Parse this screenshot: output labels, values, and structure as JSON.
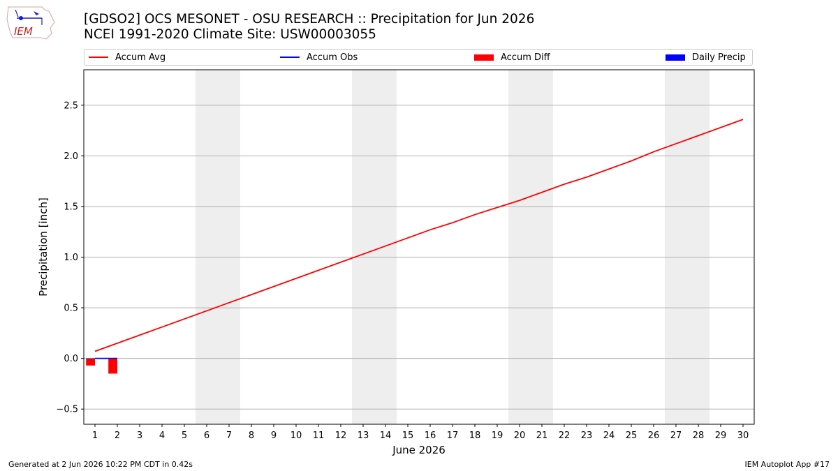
{
  "header": {
    "logo_text": "IEM",
    "title_line1": "[GDSO2] OCS MESONET - OSU RESEARCH :: Precipitation for Jun 2026",
    "title_line2": "NCEI 1991-2020 Climate Site: USW00003055"
  },
  "legend": [
    {
      "label": "Accum Avg",
      "kind": "line",
      "color": "#ff0000"
    },
    {
      "label": "Accum Obs",
      "kind": "line",
      "color": "#0000ff"
    },
    {
      "label": "Accum Diff",
      "kind": "bar",
      "color": "#ff0000"
    },
    {
      "label": "Daily Precip",
      "kind": "bar",
      "color": "#0000ff"
    }
  ],
  "chart_data": {
    "type": "line",
    "xlabel": "June 2026",
    "ylabel": "Precipitation [inch]",
    "x": [
      1,
      2,
      3,
      4,
      5,
      6,
      7,
      8,
      9,
      10,
      11,
      12,
      13,
      14,
      15,
      16,
      17,
      18,
      19,
      20,
      21,
      22,
      23,
      24,
      25,
      26,
      27,
      28,
      29,
      30
    ],
    "xlim": [
      0.5,
      30.5
    ],
    "ylim": [
      -0.65,
      2.85
    ],
    "yticks": [
      -0.5,
      0.0,
      0.5,
      1.0,
      1.5,
      2.0,
      2.5
    ],
    "ytick_labels": [
      "−0.5",
      "0.0",
      "0.5",
      "1.0",
      "1.5",
      "2.0",
      "2.5"
    ],
    "grid": "horizontal",
    "weekend_shading": [
      [
        5.5,
        7.5
      ],
      [
        12.5,
        14.5
      ],
      [
        19.5,
        21.5
      ],
      [
        26.5,
        28.5
      ]
    ],
    "series": [
      {
        "name": "Accum Avg",
        "type": "line",
        "color": "#ff0000",
        "x": [
          1,
          2,
          3,
          4,
          5,
          6,
          7,
          8,
          9,
          10,
          11,
          12,
          13,
          14,
          15,
          16,
          17,
          18,
          19,
          20,
          21,
          22,
          23,
          24,
          25,
          26,
          27,
          28,
          29,
          30
        ],
        "values": [
          0.07,
          0.15,
          0.23,
          0.31,
          0.39,
          0.47,
          0.55,
          0.63,
          0.71,
          0.79,
          0.87,
          0.95,
          1.03,
          1.11,
          1.19,
          1.27,
          1.34,
          1.42,
          1.49,
          1.56,
          1.64,
          1.72,
          1.79,
          1.87,
          1.95,
          2.04,
          2.12,
          2.2,
          2.28,
          2.36
        ]
      },
      {
        "name": "Accum Obs",
        "type": "line",
        "color": "#0000ff",
        "x": [
          1,
          2
        ],
        "values": [
          0.0,
          0.0
        ]
      },
      {
        "name": "Accum Diff",
        "type": "bar",
        "color": "#ff0000",
        "x": [
          1,
          2
        ],
        "values": [
          -0.07,
          -0.15
        ]
      },
      {
        "name": "Daily Precip",
        "type": "bar",
        "color": "#0000ff",
        "x": [
          1,
          2
        ],
        "values": [
          0.0,
          0.0
        ]
      }
    ]
  },
  "footer": {
    "left": "Generated at 2 Jun 2026 10:22 PM CDT in 0.42s",
    "right": "IEM Autoplot App #17"
  }
}
